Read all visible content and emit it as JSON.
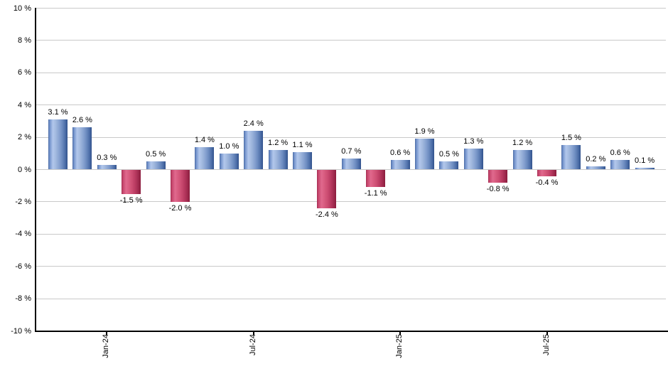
{
  "chart_data": {
    "type": "bar",
    "title": "",
    "xlabel": "",
    "ylabel": "",
    "ylim": [
      -10,
      10
    ],
    "y_tick_step": 2,
    "grid": true,
    "legend": null,
    "y_ticks": [
      {
        "value": 10,
        "label": "10 %"
      },
      {
        "value": 8,
        "label": "8 %"
      },
      {
        "value": 6,
        "label": "6 %"
      },
      {
        "value": 4,
        "label": "4 %"
      },
      {
        "value": 2,
        "label": "2 %"
      },
      {
        "value": 0,
        "label": "0 %"
      },
      {
        "value": -2,
        "label": "-2 %"
      },
      {
        "value": -4,
        "label": "-4 %"
      },
      {
        "value": -6,
        "label": "-6 %"
      },
      {
        "value": -8,
        "label": "-8 %"
      },
      {
        "value": -10,
        "label": "-10 %"
      }
    ],
    "values": [
      3.1,
      2.6,
      0.3,
      -1.5,
      0.5,
      -2.0,
      1.4,
      1.0,
      2.4,
      1.2,
      1.1,
      -2.4,
      0.7,
      -1.1,
      0.6,
      1.9,
      0.5,
      1.3,
      -0.8,
      1.2,
      -0.4,
      1.5,
      0.2,
      0.6,
      0.1
    ],
    "bar_labels": [
      "3.1 %",
      "2.6 %",
      "0.3 %",
      "-1.5 %",
      "0.5 %",
      "-2.0 %",
      "1.4 %",
      "1.0 %",
      "2.4 %",
      "1.2 %",
      "1.1 %",
      "-2.4 %",
      "0.7 %",
      "-1.1 %",
      "0.6 %",
      "1.9 %",
      "0.5 %",
      "1.3 %",
      "-0.8 %",
      "1.2 %",
      "-0.4 %",
      "1.5 %",
      "0.2 %",
      "0.6 %",
      "0.1 %"
    ],
    "x_ticks": [
      {
        "label": "Jan-24",
        "bar_index": 2
      },
      {
        "label": "Jul-24",
        "bar_index": 8
      },
      {
        "label": "Jan-25",
        "bar_index": 14
      },
      {
        "label": "Jul-25",
        "bar_index": 20
      }
    ],
    "colors": {
      "positive_bar": "#6d8ec8",
      "positive_bar_dark_edge": "#31528c",
      "positive_bar_highlight": "#b2c7ec",
      "negative_bar": "#c4436a",
      "negative_bar_dark_edge": "#8b1d3e",
      "negative_bar_highlight": "#e0698e",
      "gridline": "#c9c9c9",
      "axis": "#000000",
      "text": "#000000",
      "background": "#ffffff"
    }
  }
}
